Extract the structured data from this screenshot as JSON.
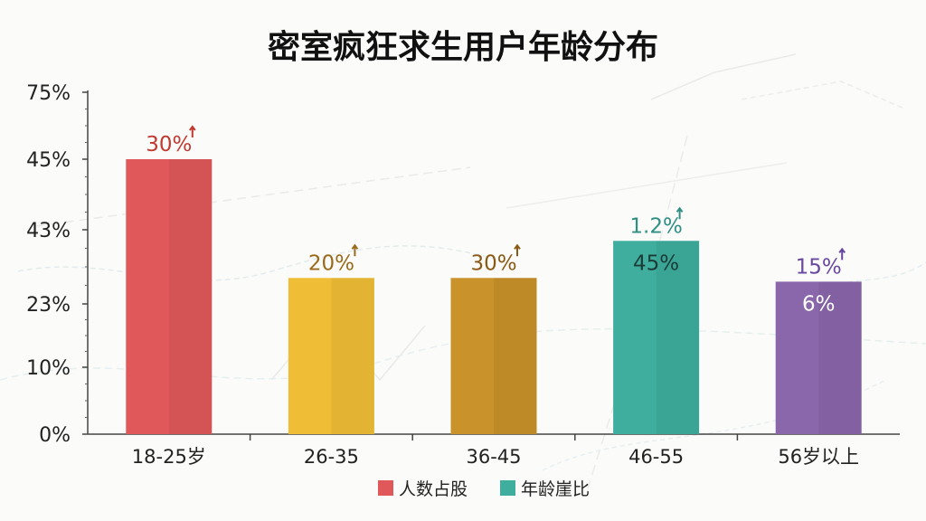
{
  "chart_data": {
    "type": "bar",
    "title": "密室疯狂求生用户年龄分布",
    "xlabel": "",
    "ylabel": "",
    "y_tick_labels": [
      "0%",
      "10%",
      "23%",
      "43%",
      "45%",
      "75%"
    ],
    "categories": [
      "18-25岁",
      "26-35",
      "36-45",
      "46-55",
      "56岁以上"
    ],
    "values": [
      45,
      30,
      30,
      40,
      29
    ],
    "top_labels": [
      "30%",
      "20%",
      "30%",
      "1.2%",
      "15%"
    ],
    "inner_labels": [
      "",
      "",
      "",
      "45%",
      "6%"
    ],
    "bar_colors": [
      "#e0585a",
      "#f0be36",
      "#c9922a",
      "#3fae9e",
      "#8a66ab"
    ],
    "top_label_colors": [
      "#c13a32",
      "#9a6a1c",
      "#8a5a14",
      "#2e8f82",
      "#6a48a0"
    ],
    "legend": [
      {
        "label": "人数占股",
        "color": "#e0585a"
      },
      {
        "label": "年龄崖比",
        "color": "#3fae9e"
      }
    ],
    "legend_position": "bottom-center",
    "grid": false
  }
}
